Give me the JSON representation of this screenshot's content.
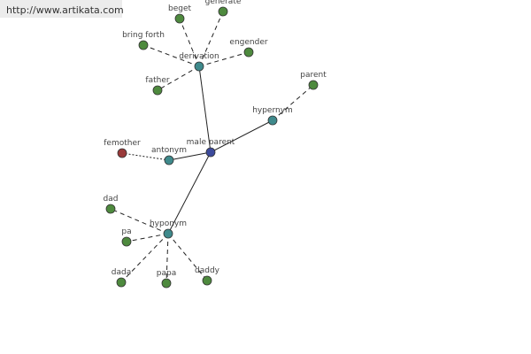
{
  "watermark": "http://www.artikata.com",
  "nodes": [
    {
      "label": "male parent"
    },
    {
      "label": "derivation"
    },
    {
      "label": "hypernym"
    },
    {
      "label": "antonym"
    },
    {
      "label": "hyponym"
    },
    {
      "label": "femother"
    },
    {
      "label": "parent"
    },
    {
      "label": "beget"
    },
    {
      "label": "generate"
    },
    {
      "label": "bring forth"
    },
    {
      "label": "engender"
    },
    {
      "label": "father"
    },
    {
      "label": "dad"
    },
    {
      "label": "pa"
    },
    {
      "label": "dada"
    },
    {
      "label": "papa"
    },
    {
      "label": "daddy"
    }
  ]
}
